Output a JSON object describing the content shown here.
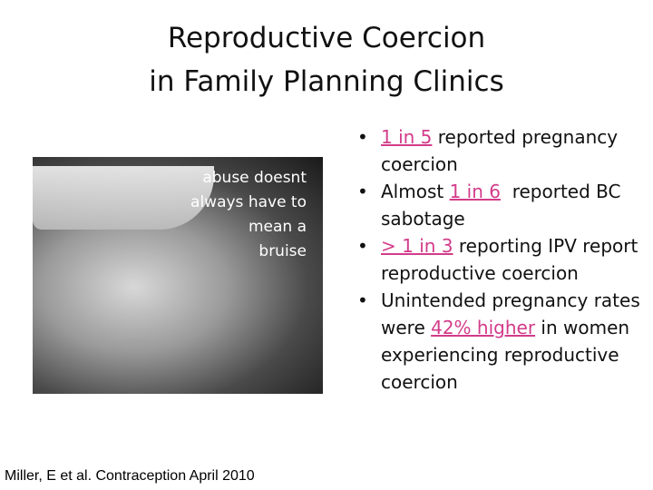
{
  "slide": {
    "title": [
      "Reproductive Coercion",
      "in Family Planning Clinics"
    ],
    "image_caption": [
      "abuse doesnt",
      "always have to",
      "mean a",
      "bruise"
    ],
    "bullets": [
      [
        {
          "text": "1 in 5",
          "highlight": true
        },
        {
          "text": " reported pregnancy coercion",
          "highlight": false
        }
      ],
      [
        {
          "text": "Almost ",
          "highlight": false
        },
        {
          "text": "1 in 6",
          "highlight": true
        },
        {
          "text": "  reported BC sabotage",
          "highlight": false
        }
      ],
      [
        {
          "text": "> 1 in 3",
          "highlight": true
        },
        {
          "text": " reporting IPV report reproductive coercion",
          "highlight": false
        }
      ],
      [
        {
          "text": "Unintended pregnancy rates were ",
          "highlight": false
        },
        {
          "text": "42% higher",
          "highlight": true
        },
        {
          "text": " in women experiencing reproductive coercion",
          "highlight": false
        }
      ]
    ],
    "citation": "Miller, E et al. Contraception April 2010"
  }
}
